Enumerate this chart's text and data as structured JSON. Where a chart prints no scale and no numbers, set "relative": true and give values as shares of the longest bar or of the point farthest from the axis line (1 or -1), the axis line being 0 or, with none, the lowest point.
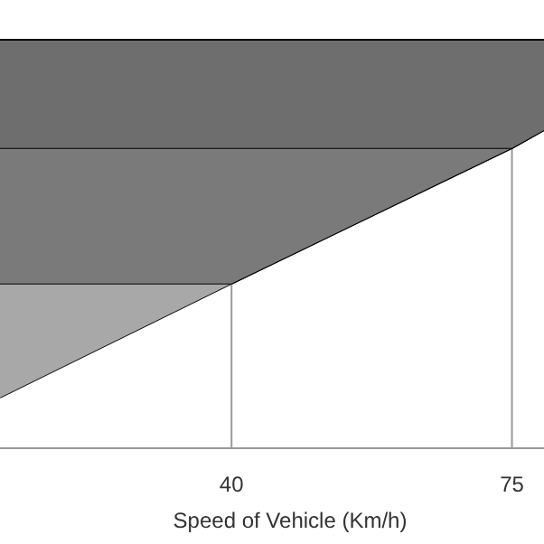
{
  "chart_data": {
    "type": "area",
    "relative": true,
    "stacked": true,
    "xlabel": "Speed of Vehicle (Km/h)",
    "x": [
      11.1,
      40,
      75,
      79
    ],
    "xlim": [
      11.1,
      79
    ],
    "xticks": [
      40,
      75
    ],
    "grid": "x",
    "series": [
      {
        "color": "#ffffff",
        "values": [
          0.124,
          0.403,
          0.735,
          0.779
        ]
      },
      {
        "color": "#a8a8a8",
        "values": [
          0.279,
          0,
          0,
          0
        ]
      },
      {
        "color": "#7a7a7a",
        "values": [
          0.332,
          0.332,
          0,
          0
        ]
      },
      {
        "color": "#6e6e6e",
        "values": [
          0.265,
          0.265,
          0.265,
          0.221
        ]
      }
    ]
  }
}
